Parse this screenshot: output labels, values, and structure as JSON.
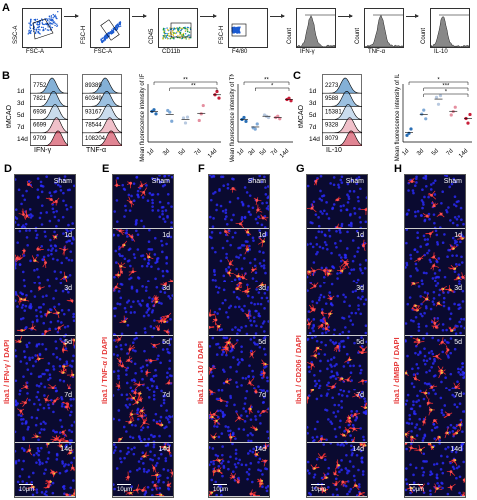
{
  "panel_labels": {
    "a": "A",
    "b": "B",
    "c": "C",
    "d": "D",
    "e": "E",
    "f": "F",
    "g": "G",
    "h": "H"
  },
  "flow": {
    "p1": {
      "y": "SSC-A",
      "x": "FSC-A"
    },
    "p2": {
      "y": "FSC-H",
      "x": "FSC-A"
    },
    "p3": {
      "y": "CD45",
      "x": "CD11b"
    },
    "p4": {
      "y": "FSC-H",
      "x": "F4/80"
    },
    "p5": {
      "y": "Count",
      "x": "IFN-γ"
    },
    "p6": {
      "y": "Count",
      "x": "TNF-α"
    },
    "p7": {
      "y": "Count",
      "x": "IL-10"
    }
  },
  "hist_b": {
    "ylabel": "tMCAO",
    "rows": [
      "1d",
      "3d",
      "5d",
      "7d",
      "14d"
    ],
    "ifn": {
      "label": "IFN-γ",
      "values": [
        "7752",
        "7821",
        "6936",
        "6699",
        "9709"
      ]
    },
    "tnf": {
      "label": "TNF-α",
      "values": [
        "89389",
        "60349",
        "93167",
        "78544",
        "108204"
      ]
    }
  },
  "hist_c": {
    "ylabel": "tMCAO",
    "rows": [
      "1d",
      "3d",
      "5d",
      "7d",
      "14d"
    ],
    "il10": {
      "label": "IL-10",
      "values": [
        "2273",
        "9588",
        "15381",
        "9328",
        "8079"
      ]
    }
  },
  "chart_data": [
    {
      "type": "scatter",
      "ylabel": "Mean fluorescence intensity of IFN-γ",
      "categories": [
        "1d",
        "3d",
        "5d",
        "7d",
        "14d"
      ],
      "values": [
        [
          7700,
          7900,
          7400
        ],
        [
          7800,
          7600,
          6500
        ],
        [
          6900,
          6300,
          7000
        ],
        [
          6600,
          7400,
          8400
        ],
        [
          9700,
          10100,
          9300
        ]
      ],
      "significance": [
        "**",
        "**"
      ],
      "ylim": [
        4000,
        11000
      ],
      "colors": [
        "#2a6fb5",
        "#7fa9d6",
        "#b8c9e0",
        "#e58fa0",
        "#c8203a"
      ]
    },
    {
      "type": "scatter",
      "ylabel": "Mean fluorescence intensity of TNF-α",
      "categories": [
        "1d",
        "3d",
        "5d",
        "7d",
        "14d"
      ],
      "values": [
        [
          75000,
          78000,
          72000
        ],
        [
          62000,
          60000,
          68000
        ],
        [
          82000,
          80000,
          78000
        ],
        [
          78000,
          80000,
          76000
        ],
        [
          106000,
          108000,
          104000
        ]
      ],
      "significance": [
        "**",
        "*"
      ],
      "ylim": [
        40000,
        130000
      ],
      "colors": [
        "#2a6fb5",
        "#7fa9d6",
        "#b8c9e0",
        "#e58fa0",
        "#c8203a"
      ]
    },
    {
      "type": "scatter",
      "ylabel": "Mean fluorescence intensity of IL-10",
      "categories": [
        "1d",
        "3d",
        "5d",
        "7d",
        "14d"
      ],
      "values": [
        [
          2300,
          3000,
          4500
        ],
        [
          9600,
          11000,
          8000
        ],
        [
          15400,
          13000,
          16000
        ],
        [
          9300,
          10500,
          12000
        ],
        [
          8100,
          6500,
          9500
        ]
      ],
      "significance": [
        "*",
        "***",
        "*"
      ],
      "ylim": [
        0,
        20000
      ],
      "colors": [
        "#2a6fb5",
        "#7fa9d6",
        "#b8c9e0",
        "#e58fa0",
        "#c8203a"
      ]
    }
  ],
  "if_cols": [
    {
      "label": "Iba1 / IFN-γ / DAPI",
      "g": "IFN-γ",
      "seed": 1
    },
    {
      "label": "Iba1 / TNF-α / DAPI",
      "g": "TNF-α",
      "seed": 2
    },
    {
      "label": "Iba1 / IL-10 / DAPI",
      "g": "IL-10",
      "seed": 3
    },
    {
      "label": "Iba1 / CD206 / DAPI",
      "g": "CD206",
      "seed": 4
    },
    {
      "label": "Iba1 / dMBP / DAPI",
      "g": "dMBP",
      "seed": 5
    }
  ],
  "if_rows": [
    "Sham",
    "1d",
    "3d",
    "5d",
    "7d",
    "14d"
  ],
  "scale_label": "10μm"
}
